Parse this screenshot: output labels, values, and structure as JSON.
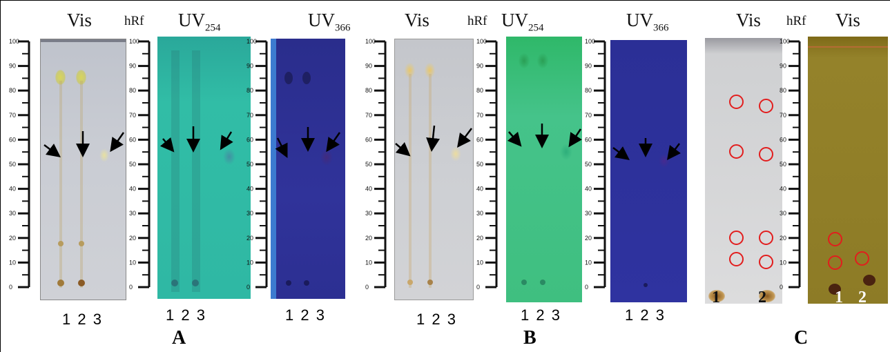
{
  "figure": {
    "panel_labels": [
      "A",
      "B",
      "C"
    ],
    "headers": {
      "vis": "Vis",
      "hrf": "hRf",
      "uv254_main": "UV",
      "uv254_sub": "254",
      "uv366_main": "UV",
      "uv366_sub": "366"
    },
    "lane_numbers": "1  2  3",
    "c_lane_1": "1",
    "c_lane_2": "2",
    "ruler_ticks": [
      "0",
      "10",
      "20",
      "30",
      "40",
      "50",
      "60",
      "70",
      "80",
      "90",
      "100"
    ],
    "colors": {
      "vis_plate": "#c8cbd2",
      "uv254_plate_a": "#2fb9a3",
      "uv254_plate_b": "#3fc083",
      "uv366_plate": "#2d2f93",
      "c_right_plate": "#8e7a23",
      "circle": "#e21d1d"
    }
  }
}
